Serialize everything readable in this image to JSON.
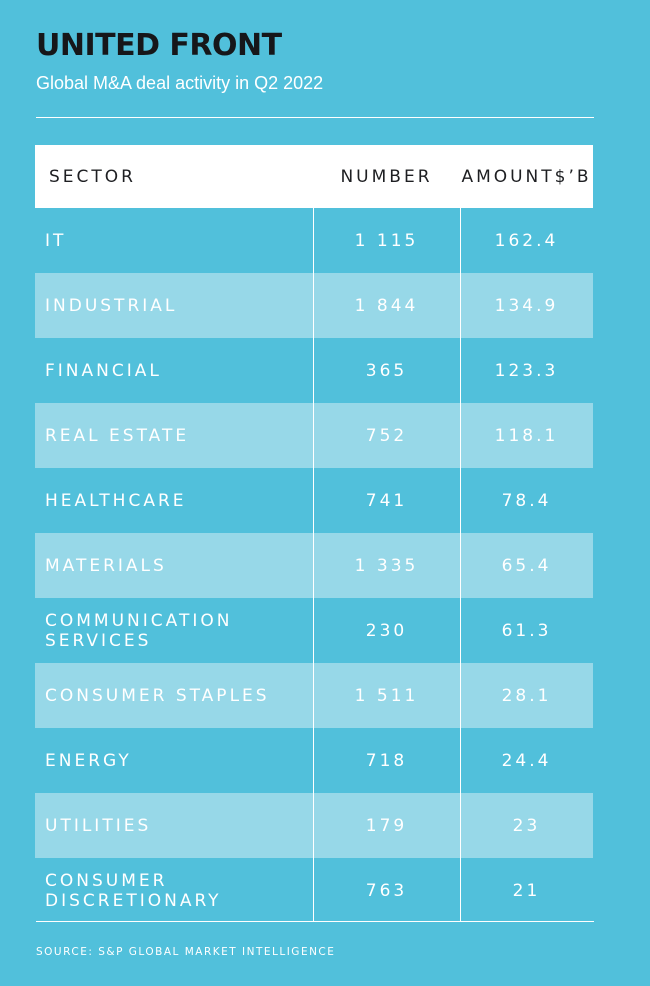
{
  "title": "UNITED FRONT",
  "subtitle": "Global M&A deal activity in Q2 2022",
  "colors": {
    "background": "#51C0DB",
    "row_alt": "#97D8E8",
    "header_bg": "#FFFFFF",
    "title_text": "#16171A"
  },
  "table": {
    "headers": {
      "sector": "SECTOR",
      "number": "NUMBER",
      "amount_line1": "AMOUNT",
      "amount_line2": "$’B"
    }
  },
  "source": "SOURCE: S&P GLOBAL MARKET INTELLIGENCE",
  "chart_data": {
    "type": "table",
    "title": "UNITED FRONT",
    "subtitle": "Global M&A deal activity in Q2 2022",
    "columns": [
      "SECTOR",
      "NUMBER",
      "AMOUNT $’B"
    ],
    "rows": [
      {
        "sector": "IT",
        "number": "1 115",
        "amount": "162.4"
      },
      {
        "sector": "INDUSTRIAL",
        "number": "1 844",
        "amount": "134.9"
      },
      {
        "sector": "FINANCIAL",
        "number": "365",
        "amount": "123.3"
      },
      {
        "sector": "REAL ESTATE",
        "number": "752",
        "amount": "118.1"
      },
      {
        "sector": "HEALTHCARE",
        "number": "741",
        "amount": "78.4"
      },
      {
        "sector": "MATERIALS",
        "number": "1 335",
        "amount": "65.4"
      },
      {
        "sector": "COMMUNICATION SERVICES",
        "number": "230",
        "amount": "61.3"
      },
      {
        "sector": "CONSUMER STAPLES",
        "number": "1 511",
        "amount": "28.1"
      },
      {
        "sector": "ENERGY",
        "number": "718",
        "amount": "24.4"
      },
      {
        "sector": "UTILITIES",
        "number": "179",
        "amount": "23"
      },
      {
        "sector": "CONSUMER DISCRETIONARY",
        "number": "763",
        "amount": "21"
      }
    ],
    "source": "SOURCE: S&P GLOBAL MARKET INTELLIGENCE"
  }
}
